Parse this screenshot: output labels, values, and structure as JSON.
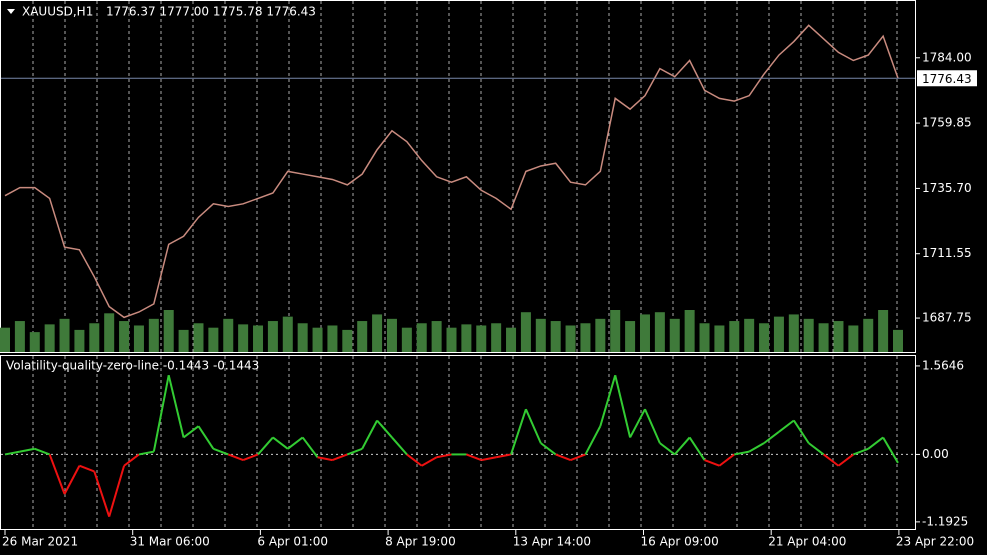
{
  "chart_data": [
    {
      "type": "line",
      "symbol": "XAUUSD,H1",
      "quote": "1776.37 1777.00 1775.78 1776.43",
      "color": "#c98b7f",
      "volume_color": "#3f7a3a",
      "values": [
        1733,
        1736,
        1736,
        1732,
        1714,
        1713,
        1703,
        1692,
        1688,
        1690,
        1693,
        1715,
        1718,
        1725,
        1730,
        1729,
        1730,
        1732,
        1734,
        1742,
        1741,
        1740,
        1739,
        1737,
        1741,
        1750,
        1757,
        1753,
        1746,
        1740,
        1738,
        1740,
        1735,
        1732,
        1728,
        1742,
        1744,
        1745,
        1738,
        1737,
        1742,
        1769,
        1765,
        1770,
        1780,
        1777,
        1783,
        1772,
        1769,
        1768,
        1770,
        1778,
        1785,
        1790,
        1796,
        1791,
        1786,
        1783,
        1785,
        1792,
        1776.43
      ],
      "volumes": [
        22,
        28,
        18,
        25,
        30,
        20,
        26,
        35,
        28,
        24,
        30,
        38,
        20,
        26,
        22,
        30,
        25,
        24,
        28,
        32,
        26,
        22,
        24,
        20,
        28,
        34,
        30,
        22,
        26,
        28,
        22,
        25,
        24,
        26,
        22,
        36,
        30,
        28,
        24,
        26,
        30,
        38,
        28,
        34,
        36,
        30,
        38,
        26,
        24,
        28,
        30,
        26,
        32,
        34,
        30,
        26,
        28,
        24,
        30,
        38,
        20
      ],
      "current_price": 1776.43,
      "ylim": [
        1675.2,
        1805.0
      ],
      "yticks": [
        {
          "value": 1784,
          "label": "1784.00"
        },
        1759.85,
        {
          "value": 1735.7,
          "label": "1735.70"
        },
        1711.55,
        1687.75
      ]
    },
    {
      "type": "oscillator",
      "label": "Volatility-quality-zero-line -0.1443 -0.1443",
      "up_color": "#33cc33",
      "down_color": "#ee1111",
      "values": [
        0,
        0.05,
        0.1,
        0,
        -0.7,
        -0.2,
        -0.3,
        -1.1,
        -0.2,
        0,
        0.05,
        1.4,
        0.3,
        0.5,
        0.1,
        0,
        -0.1,
        0,
        0.3,
        0.1,
        0.3,
        -0.05,
        -0.1,
        0,
        0.1,
        0.6,
        0.3,
        0,
        -0.2,
        -0.05,
        0,
        0,
        -0.1,
        -0.05,
        0,
        0.8,
        0.2,
        0,
        -0.1,
        0,
        0.5,
        1.4,
        0.3,
        0.8,
        0.2,
        0,
        0.3,
        -0.1,
        -0.2,
        0,
        0.05,
        0.2,
        0.4,
        0.6,
        0.2,
        0,
        -0.2,
        0,
        0.1,
        0.3,
        -0.15
      ],
      "ylim": [
        -1.336,
        1.74
      ],
      "yticks": [
        1.5646,
        {
          "value": 0,
          "label": "0.00"
        },
        -1.1925
      ],
      "x_labels": [
        "26 Mar 2021",
        "31 Mar 06:00",
        "6 Apr 01:00",
        "8 Apr 19:00",
        "13 Apr 14:00",
        "16 Apr 09:00",
        "21 Apr 04:00",
        "23 Apr 22:00"
      ]
    }
  ]
}
